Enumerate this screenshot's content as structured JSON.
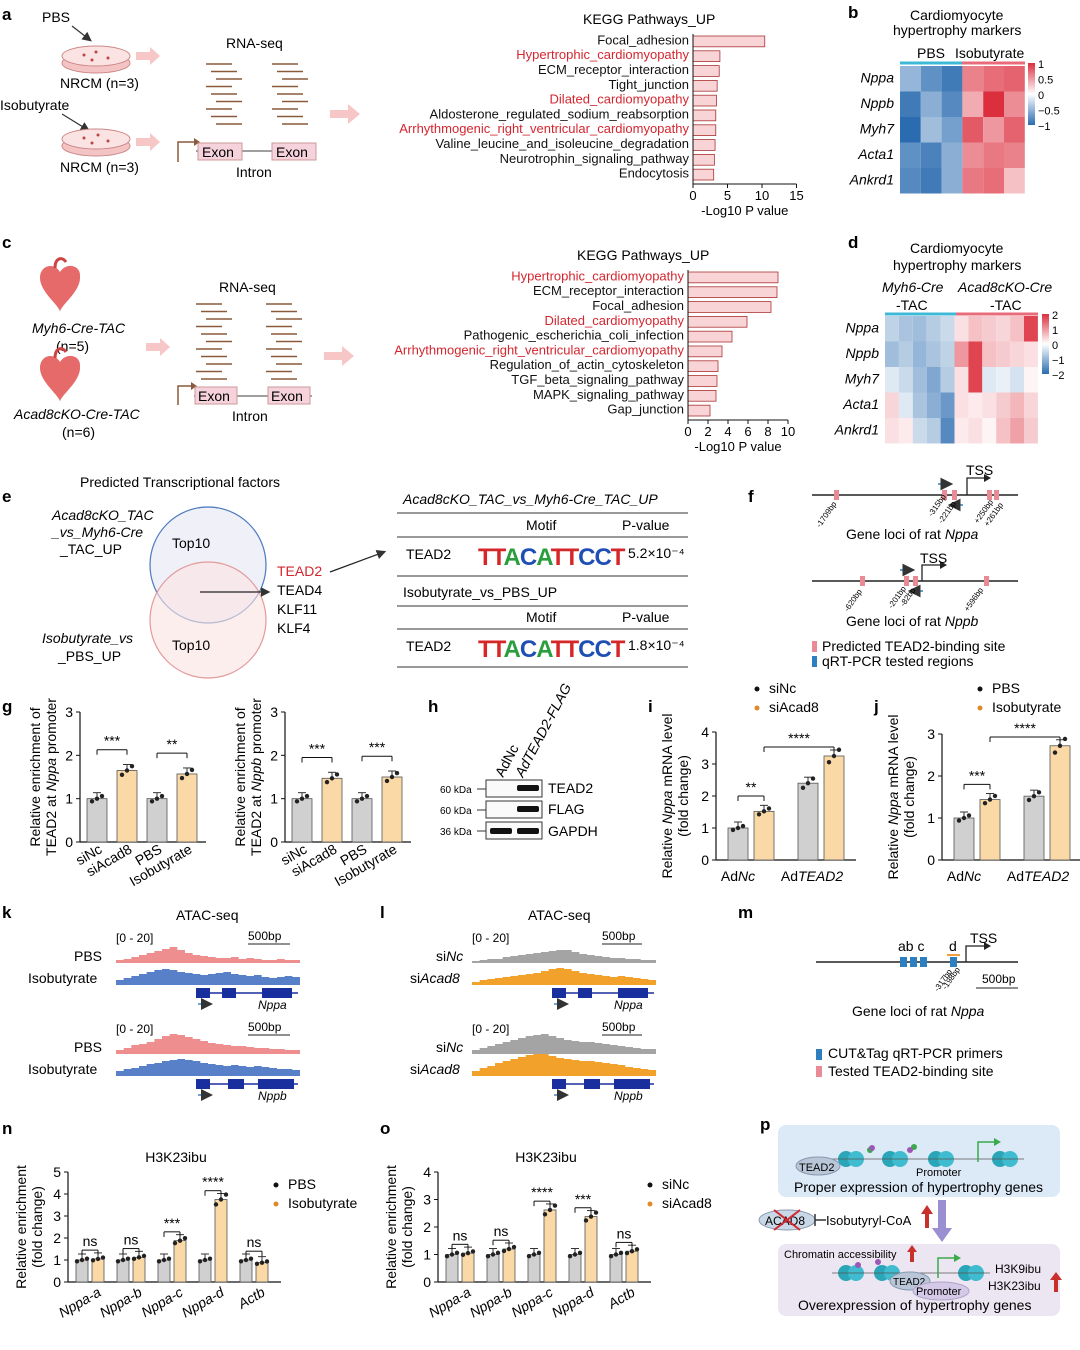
{
  "panels": {
    "a": "a",
    "b": "b",
    "c": "c",
    "d": "d",
    "e": "e",
    "f": "f",
    "g": "g",
    "h": "h",
    "i": "i",
    "j": "j",
    "k": "k",
    "l": "l",
    "m": "m",
    "n": "n",
    "o": "o",
    "p": "p"
  },
  "colors": {
    "bar_pink": "#f9d4d7",
    "bar_orange": "#fbd9a6",
    "bar_gray": "#d0d0d0",
    "red_text": "#d4262f",
    "heat_high": "#dc2f3e",
    "heat_low": "#2b6cb0",
    "atac_pink": "#ef8e8e",
    "atac_blue": "#5880c8",
    "atac_gray": "#a4a4a4",
    "atac_orange": "#f2a12a",
    "gene_blue": "#1a2f9e",
    "arrow_blue": "#3a87c8",
    "site_pink": "#e88b96",
    "primer_blue": "#2e7fc0",
    "dot_orange": "#e08a2a"
  },
  "a": {
    "pbs": "PBS",
    "isobutyrate": "Isobutyrate",
    "nrcm1": "NRCM (n=3)",
    "nrcm2": "NRCM (n=3)",
    "rnaseq": "RNA-seq",
    "exon1": "Exon",
    "exon2": "Exon",
    "intron": "Intron"
  },
  "a_chart": {
    "type": "bar",
    "title": "KEGG Pathways_UP",
    "xlabel": "-Log10 P value",
    "xlim": [
      0,
      15
    ],
    "xticks": [
      0,
      5,
      10,
      15
    ],
    "categories": [
      "Focal_adhesion",
      "Hypertrophic_cardiomyopathy",
      "ECM_receptor_interaction",
      "Tight_junction",
      "Dilated_cardiomyopathy",
      "Aldosterone_regulated_sodium_reabsorption",
      "Arrhythmogenic_right_ventricular_cardiomyopathy",
      "Valine_leucine_and_isoleucine_degradation",
      "Neurotrophin_signaling_pathway",
      "Endocytosis"
    ],
    "values": [
      10.4,
      3.9,
      3.8,
      3.5,
      3.4,
      3.3,
      3.3,
      3.2,
      3.1,
      3.0
    ],
    "highlight": [
      false,
      true,
      false,
      false,
      true,
      false,
      true,
      false,
      false,
      false
    ]
  },
  "b": {
    "title1": "Cardiomyocyte",
    "title2": "hypertrophy markers",
    "col1": "PBS",
    "col2": "Isobutyrate",
    "genes": [
      "Nppa",
      "Nppb",
      "Myh7",
      "Acta1",
      "Ankrd1"
    ],
    "legend": [
      "1",
      "0.5",
      "0",
      "−0.5",
      "−1"
    ],
    "values": [
      [
        -0.5,
        -0.75,
        -0.9,
        0.6,
        0.7,
        0.75
      ],
      [
        -0.9,
        -0.55,
        -0.8,
        0.4,
        1.0,
        0.55
      ],
      [
        -1.0,
        -0.45,
        -0.65,
        0.8,
        0.5,
        0.75
      ],
      [
        -0.75,
        -0.85,
        -0.55,
        0.55,
        0.65,
        0.6
      ],
      [
        -0.8,
        -0.9,
        -0.55,
        0.65,
        0.7,
        0.3
      ]
    ]
  },
  "c": {
    "group1": "Myh6-Cre-TAC",
    "group1_n": "(n=5)",
    "group2": "Acad8cKO-Cre-TAC",
    "group2_n": "(n=6)",
    "rnaseq": "RNA-seq",
    "exon1": "Exon",
    "exon2": "Exon",
    "intron": "Intron"
  },
  "c_chart": {
    "type": "bar",
    "title": "KEGG Pathways_UP",
    "xlabel": "-Log10 P value",
    "xlim": [
      0,
      10
    ],
    "xticks": [
      0,
      2,
      4,
      6,
      8,
      10
    ],
    "categories": [
      "Hypertrophic_cardiomyopathy",
      "ECM_receptor_interaction",
      "Focal_adhesion",
      "Dilated_cardiomyopathy",
      "Pathogenic_escherichia_coli_infection",
      "Arrhythmogenic_right_ventricular_cardiomyopathy",
      "Regulation_of_actin_cytoskeleton",
      "TGF_beta_signaling_pathway",
      "MAPK_signaling_pathway",
      "Gap_junction"
    ],
    "values": [
      9.0,
      8.9,
      8.3,
      5.9,
      4.4,
      3.4,
      3.0,
      2.9,
      2.8,
      2.2
    ],
    "highlight": [
      true,
      false,
      false,
      true,
      false,
      true,
      false,
      false,
      false,
      false
    ]
  },
  "d": {
    "title1": "Cardiomyocyte",
    "title2": "hypertrophy markers",
    "col1a": "Myh6-Cre",
    "col1b": "-TAC",
    "col2a": "Acad8cKO-Cre",
    "col2b": "-TAC",
    "genes": [
      "Nppa",
      "Nppb",
      "Myh7",
      "Acta1",
      "Ankrd1"
    ],
    "legend": [
      "2",
      "1",
      "0",
      "−1",
      "−2"
    ],
    "values": [
      [
        -0.6,
        -0.8,
        -0.9,
        -0.7,
        -0.5,
        0.3,
        0.6,
        0.5,
        0.4,
        0.6,
        1.8
      ],
      [
        -0.9,
        -0.7,
        -1.0,
        -0.8,
        -0.6,
        1.0,
        1.8,
        0.6,
        0.5,
        0.4,
        0.3
      ],
      [
        -0.3,
        -0.5,
        -0.9,
        -1.2,
        -0.7,
        0.3,
        1.8,
        -0.3,
        -0.2,
        -0.4,
        0.1
      ],
      [
        0.4,
        -0.3,
        -0.8,
        -1.1,
        -1.4,
        0.3,
        0.2,
        0.3,
        0.5,
        0.7,
        0.4
      ],
      [
        0.3,
        0.2,
        -0.5,
        -0.7,
        -1.6,
        0.2,
        0.3,
        0.1,
        0.6,
        0.9,
        0.5
      ]
    ]
  },
  "e": {
    "title": "Predicted Transcriptional factors",
    "set1a": "Acad8cKO_TAC",
    "set1b": "_vs_Myh6-Cre",
    "set1c": "_TAC_UP",
    "top1": "Top10",
    "set2a": "Isobutyrate_vs",
    "set2b": "_PBS_UP",
    "top2": "Top10",
    "factors": [
      "TEAD2",
      "TEAD4",
      "KLF11",
      "KLF4"
    ],
    "table1_title": "Acad8cKO_TAC_vs_Myh6-Cre_TAC_UP",
    "motif_h": "Motif",
    "pval_h": "P-value",
    "row1_name": "TEAD2",
    "row1_motif": "TTACATTCCT",
    "row1_pval": "5.2×10⁻⁴",
    "table2_title": "Isobutyrate_vs_PBS_UP",
    "row2_name": "TEAD2",
    "row2_motif": "TTACATTCCT",
    "row2_pval": "1.8×10⁻⁴"
  },
  "f": {
    "tss": "TSS",
    "nppa_sites": [
      "-1709bp",
      "-315bp",
      "-221bp",
      "+250bp",
      "+261bp"
    ],
    "nppa_label": "Gene loci of rat Nppa",
    "nppb_sites": [
      "-620bp",
      "-201bp",
      "-82bp",
      "+596bp"
    ],
    "nppb_label": "Gene loci of rat Nppb",
    "legend1": "Predicted TEAD2-binding site",
    "legend2": "qRT-PCR tested regions"
  },
  "g_chart": {
    "type": "bar",
    "ylabel_line1": "Relative enrichment of",
    "ylabel_line2_pre": "TEAD2 at ",
    "gene1": "Nppa",
    "gene2": "Nppb",
    "ylabel_line2_post": " promoter",
    "ylim": [
      0,
      3
    ],
    "yticks": [
      "0",
      "1",
      "2",
      "3"
    ],
    "categories": [
      "siNc",
      "siAcad8",
      "PBS",
      "Isobutyrate"
    ],
    "nppa_values": [
      1.0,
      1.65,
      1.0,
      1.57
    ],
    "nppb_values": [
      1.0,
      1.47,
      1.0,
      1.5
    ],
    "sig_nppa": [
      "***",
      "**"
    ],
    "sig_nppb": [
      "***",
      "***"
    ]
  },
  "h": {
    "lane1": "AdNc",
    "lane2": "AdTEAD2-FLAG",
    "bands": [
      {
        "kda": "60 kDa",
        "name": "TEAD2"
      },
      {
        "kda": "60 kDa",
        "name": "FLAG"
      },
      {
        "kda": "36 kDa",
        "name": "GAPDH"
      }
    ]
  },
  "i_chart": {
    "type": "bar",
    "ylabel_line1": "Relative ",
    "gene": "Nppa",
    "ylabel_line1_post": " mRNA level",
    "ylabel_line2": "(fold change)",
    "ylim": [
      0,
      4
    ],
    "yticks": [
      "0",
      "1",
      "2",
      "3",
      "4"
    ],
    "legend": [
      "siNc",
      "siAcad8"
    ],
    "groups": [
      "AdNc",
      "AdTEAD2"
    ],
    "series": [
      {
        "name": "siNc",
        "values": [
          1.0,
          2.4
        ]
      },
      {
        "name": "siAcad8",
        "values": [
          1.52,
          3.25
        ]
      }
    ],
    "sig": [
      "**",
      "****"
    ]
  },
  "j_chart": {
    "type": "bar",
    "ylabel_line1": "Relative ",
    "gene": "Nppa",
    "ylabel_line1_post": " mRNA level",
    "ylabel_line2": "(fold change)",
    "ylim": [
      0,
      3
    ],
    "yticks": [
      "0",
      "1",
      "2",
      "3"
    ],
    "legend": [
      "PBS",
      "Isobutyrate"
    ],
    "groups": [
      "AdNc",
      "AdTEAD2"
    ],
    "series": [
      {
        "name": "PBS",
        "values": [
          1.0,
          1.52
        ]
      },
      {
        "name": "Isobutyrate",
        "values": [
          1.44,
          2.72
        ]
      }
    ],
    "sig": [
      "***",
      "****"
    ]
  },
  "k": {
    "title": "ATAC-seq",
    "range1": "[0 - 20]",
    "scale1": "500bp",
    "pbs1": "PBS",
    "iso1": "Isobutyrate",
    "gene1": "Nppa",
    "range2": "[0 - 20]",
    "scale2": "500bp",
    "pbs2": "PBS",
    "iso2": "Isobutyrate",
    "gene2": "Nppb"
  },
  "l": {
    "title": "ATAC-seq",
    "range1": "[0 - 20]",
    "scale1": "500bp",
    "si1a": "siNc",
    "si1b": "siAcad8",
    "gene1": "Nppa",
    "range2": "[0 - 20]",
    "scale2": "500bp",
    "si2a": "siNc",
    "si2b": "siAcad8",
    "gene2": "Nppb"
  },
  "m": {
    "labels": "ab c",
    "label_d": "d",
    "tss": "TSS",
    "site1": "-317bp",
    "site2": "-198bp",
    "scale": "500bp",
    "gene_label": "Gene loci of rat Nppa",
    "legend1": "CUT&Tag qRT-PCR primers",
    "legend2": "Tested TEAD2-binding site"
  },
  "n_chart": {
    "type": "bar",
    "title": "H3K23ibu",
    "ylabel_line1": "Relative enrichment",
    "ylabel_line2": "(fold change)",
    "ylim": [
      0,
      5
    ],
    "yticks": [
      "0",
      "1",
      "2",
      "3",
      "4",
      "5"
    ],
    "legend": [
      "PBS",
      "Isobutyrate"
    ],
    "categories": [
      "Nppa-a",
      "Nppa-b",
      "Nppa-c",
      "Nppa-d",
      "Actb"
    ],
    "series": [
      {
        "name": "PBS",
        "values": [
          1.0,
          1.0,
          1.0,
          1.0,
          1.0
        ]
      },
      {
        "name": "Isobutyrate",
        "values": [
          1.05,
          1.12,
          1.88,
          3.75,
          0.88
        ]
      }
    ],
    "sig": [
      "ns",
      "ns",
      "***",
      "****",
      "ns"
    ]
  },
  "o_chart": {
    "type": "bar",
    "title": "H3K23ibu",
    "ylabel_line1": "Relative enrichment",
    "ylabel_line2": "(fold change)",
    "ylim": [
      0,
      4
    ],
    "yticks": [
      "0",
      "1",
      "2",
      "3",
      "4"
    ],
    "legend": [
      "siNc",
      "siAcad8"
    ],
    "categories": [
      "Nppa-a",
      "Nppa-b",
      "Nppa-c",
      "Nppa-d",
      "Actb"
    ],
    "series": [
      {
        "name": "siNc",
        "values": [
          1.0,
          1.0,
          1.0,
          1.0,
          1.0
        ]
      },
      {
        "name": "siAcad8",
        "values": [
          1.05,
          1.2,
          2.62,
          2.38,
          1.12
        ]
      }
    ],
    "sig": [
      "ns",
      "ns",
      "****",
      "***",
      "ns"
    ]
  },
  "p": {
    "tead2_top": "TEAD2",
    "promoter_top": "Promoter",
    "caption_top": "Proper expression of hypertrophy genes",
    "acad8": "ACAD8",
    "isobutyryl": "Isobutyryl-CoA",
    "chromatin": "Chromatin accessibility",
    "tead2_bot": "TEAD2",
    "promoter_bot": "Promoter",
    "h3k9": "H3K9ibu",
    "h3k23": "H3K23ibu",
    "caption_bot": "Overexpression of hypertrophy genes"
  }
}
